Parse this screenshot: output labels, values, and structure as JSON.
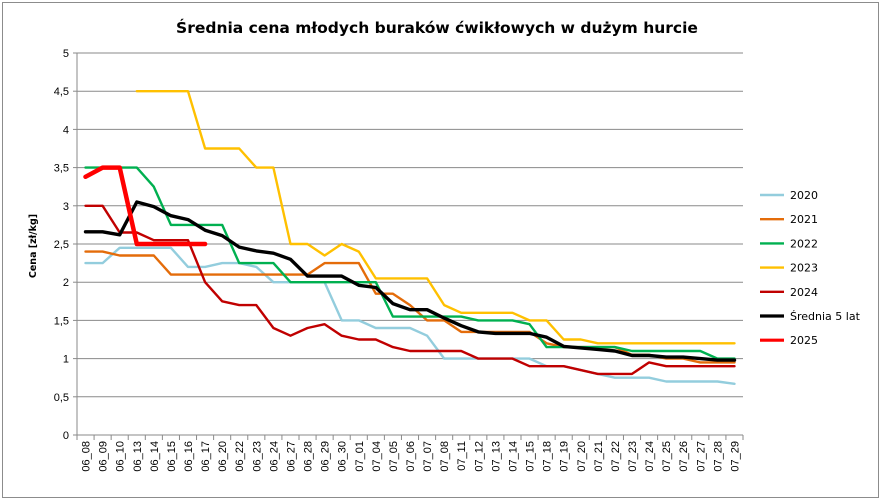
{
  "chart_data": {
    "type": "line",
    "title": "Średnia cena młodych buraków ćwikłowych w dużym hurcie",
    "xlabel": "",
    "ylabel": "Cena [zł/kg]",
    "ylim": [
      0,
      5
    ],
    "yticks": [
      "0",
      "0,5",
      "1",
      "1,5",
      "2",
      "2,5",
      "3",
      "3,5",
      "4",
      "4,5",
      "5"
    ],
    "grid": true,
    "legend_position": "right",
    "categories": [
      "06_08",
      "06_09",
      "06_10",
      "06_13",
      "06_14",
      "06_15",
      "06_16",
      "06_17",
      "06_20",
      "06_22",
      "06_23",
      "06_24",
      "06_27",
      "06_28",
      "06_29",
      "06_30",
      "07_01",
      "07_04",
      "07_05",
      "07_06",
      "07_07",
      "07_08",
      "07_11",
      "07_12",
      "07_13",
      "07_14",
      "07_15",
      "07_18",
      "07_19",
      "07_20",
      "07_21",
      "07_22",
      "07_23",
      "07_24",
      "07_25",
      "07_26",
      "07_27",
      "07_28",
      "07_29"
    ],
    "series": [
      {
        "name": "2020",
        "color": "#93cddd",
        "width": 2.4,
        "values": [
          2.25,
          2.25,
          2.45,
          2.45,
          2.45,
          2.45,
          2.2,
          2.2,
          2.25,
          2.25,
          2.2,
          2.0,
          2.0,
          2.0,
          2.0,
          1.5,
          1.5,
          1.4,
          1.4,
          1.4,
          1.3,
          1.0,
          1.0,
          1.0,
          1.0,
          1.0,
          1.0,
          0.9,
          0.9,
          0.85,
          0.8,
          0.75,
          0.75,
          0.75,
          0.7,
          0.7,
          0.7,
          0.7,
          0.67
        ]
      },
      {
        "name": "2021",
        "color": "#e46c0a",
        "width": 2.4,
        "values": [
          2.4,
          2.4,
          2.35,
          2.35,
          2.35,
          2.1,
          2.1,
          2.1,
          2.1,
          2.1,
          2.1,
          2.1,
          2.1,
          2.1,
          2.25,
          2.25,
          2.25,
          1.85,
          1.85,
          1.7,
          1.5,
          1.5,
          1.35,
          1.35,
          1.35,
          1.35,
          1.35,
          1.2,
          1.15,
          1.15,
          1.15,
          1.15,
          1.05,
          1.05,
          1.0,
          1.0,
          0.95,
          0.95,
          0.95
        ]
      },
      {
        "name": "2022",
        "color": "#00b050",
        "width": 2.4,
        "values": [
          3.5,
          3.5,
          3.5,
          3.5,
          3.25,
          2.75,
          2.75,
          2.75,
          2.75,
          2.25,
          2.25,
          2.25,
          2.0,
          2.0,
          2.0,
          2.0,
          2.0,
          2.0,
          1.55,
          1.55,
          1.55,
          1.55,
          1.55,
          1.5,
          1.5,
          1.5,
          1.45,
          1.15,
          1.15,
          1.15,
          1.15,
          1.15,
          1.1,
          1.1,
          1.1,
          1.1,
          1.1,
          1.0,
          1.0
        ]
      },
      {
        "name": "2023",
        "color": "#ffc000",
        "width": 2.4,
        "values": [
          null,
          null,
          null,
          4.5,
          4.5,
          4.5,
          4.5,
          3.75,
          3.75,
          3.75,
          3.5,
          3.5,
          2.5,
          2.5,
          2.35,
          2.5,
          2.4,
          2.05,
          2.05,
          2.05,
          2.05,
          1.7,
          1.6,
          1.6,
          1.6,
          1.6,
          1.5,
          1.5,
          1.25,
          1.25,
          1.2,
          1.2,
          1.2,
          1.2,
          1.2,
          1.2,
          1.2,
          1.2,
          1.2
        ]
      },
      {
        "name": "2024",
        "color": "#c00000",
        "width": 2.4,
        "values": [
          3.0,
          3.0,
          2.65,
          2.65,
          2.55,
          2.55,
          2.55,
          2.0,
          1.75,
          1.7,
          1.7,
          1.4,
          1.3,
          1.4,
          1.45,
          1.3,
          1.25,
          1.25,
          1.15,
          1.1,
          1.1,
          1.1,
          1.1,
          1.0,
          1.0,
          1.0,
          0.9,
          0.9,
          0.9,
          0.85,
          0.8,
          0.8,
          0.8,
          0.95,
          0.9,
          0.9,
          0.9,
          0.9,
          0.9
        ]
      },
      {
        "name": "Średnia 5 lat",
        "color": "#000000",
        "width": 3.4,
        "values": [
          2.66,
          2.66,
          2.62,
          3.05,
          2.99,
          2.87,
          2.82,
          2.68,
          2.61,
          2.46,
          2.41,
          2.38,
          2.3,
          2.08,
          2.08,
          2.08,
          1.96,
          1.93,
          1.72,
          1.64,
          1.64,
          1.53,
          1.43,
          1.35,
          1.33,
          1.33,
          1.33,
          1.28,
          1.16,
          1.14,
          1.12,
          1.1,
          1.04,
          1.04,
          1.02,
          1.02,
          1.0,
          0.98,
          0.98
        ]
      },
      {
        "name": "2025",
        "color": "#ff0000",
        "width": 4.5,
        "values": [
          3.38,
          3.5,
          3.5,
          2.5,
          2.5,
          2.5,
          2.5,
          2.5,
          null,
          null,
          null,
          null,
          null,
          null,
          null,
          null,
          null,
          null,
          null,
          null,
          null,
          null,
          null,
          null,
          null,
          null,
          null,
          null,
          null,
          null,
          null,
          null,
          null,
          null,
          null,
          null,
          null,
          null,
          null
        ]
      }
    ]
  }
}
